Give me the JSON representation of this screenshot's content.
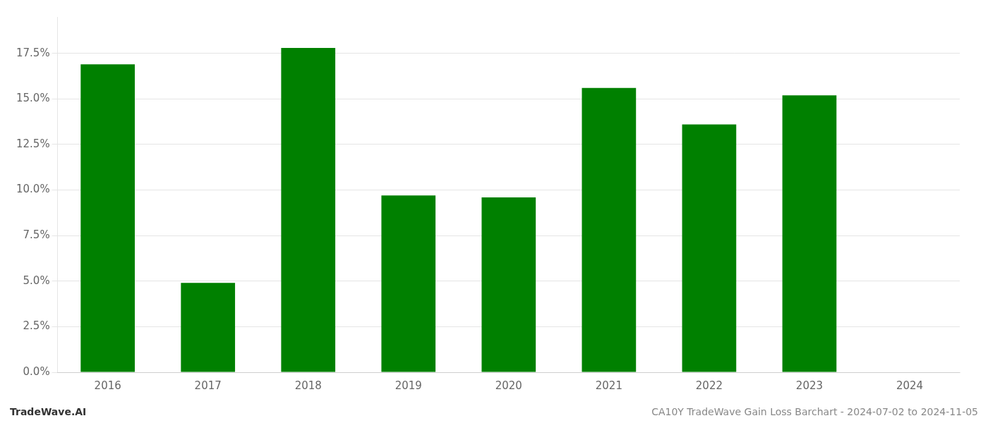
{
  "chart_data": {
    "type": "bar",
    "categories": [
      "2016",
      "2017",
      "2018",
      "2019",
      "2020",
      "2021",
      "2022",
      "2023",
      "2024"
    ],
    "values": [
      0.169,
      0.049,
      0.178,
      0.097,
      0.096,
      0.156,
      0.136,
      0.152,
      null
    ],
    "color": "#008000",
    "ylim": [
      0,
      0.195
    ],
    "yticks": [
      {
        "value": 0.0,
        "label": "0.0%"
      },
      {
        "value": 0.025,
        "label": "2.5%"
      },
      {
        "value": 0.05,
        "label": "5.0%"
      },
      {
        "value": 0.075,
        "label": "7.5%"
      },
      {
        "value": 0.1,
        "label": "10.0%"
      },
      {
        "value": 0.125,
        "label": "12.5%"
      },
      {
        "value": 0.15,
        "label": "15.0%"
      },
      {
        "value": 0.175,
        "label": "17.5%"
      }
    ],
    "grid": true,
    "annotations": [
      "TradeWave.AI",
      "CA10Y TradeWave Gain Loss Barchart - 2024-07-02 to 2024-11-05"
    ]
  }
}
